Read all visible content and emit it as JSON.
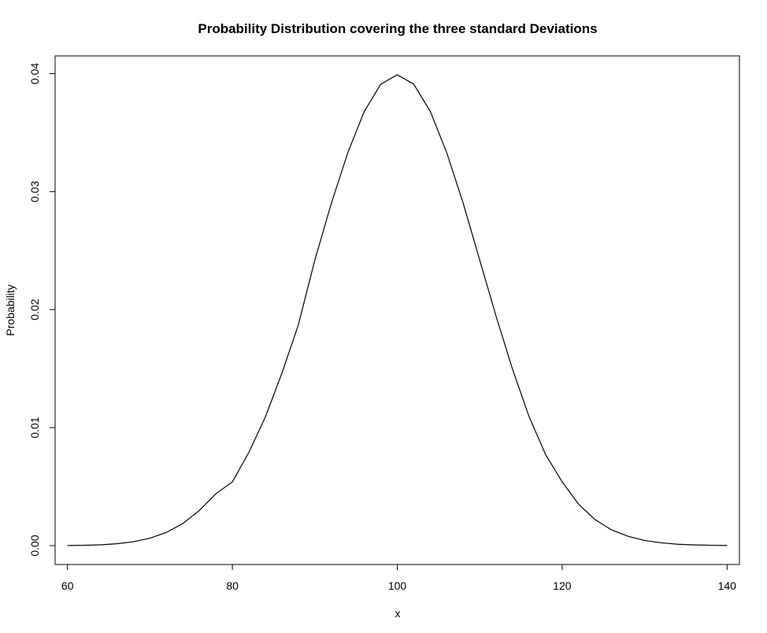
{
  "chart_data": {
    "type": "line",
    "title": "Probability Distribution covering the three standard Deviations",
    "xlabel": "x",
    "ylabel": "Probability",
    "xlim": [
      58.5,
      141.5
    ],
    "ylim": [
      -0.0016,
      0.0415
    ],
    "x_ticks": [
      60,
      80,
      100,
      120,
      140
    ],
    "x_tick_labels": [
      "60",
      "80",
      "100",
      "120",
      "140"
    ],
    "y_ticks": [
      0.0,
      0.01,
      0.02,
      0.03,
      0.04
    ],
    "y_tick_labels": [
      "0.00",
      "0.01",
      "0.02",
      "0.03",
      "0.04"
    ],
    "grid": false,
    "legend": "none",
    "line_color": "#000000",
    "series": [
      {
        "x": [
          60,
          62,
          64,
          66,
          68,
          70,
          72,
          74,
          76,
          78,
          80,
          82,
          84,
          86,
          88,
          90,
          92,
          94,
          96,
          98,
          100,
          102,
          104,
          106,
          108,
          110,
          112,
          114,
          116,
          118,
          120,
          122,
          124,
          126,
          128,
          130,
          132,
          134,
          136,
          138,
          140
        ],
        "values": [
          1e-05,
          3e-05,
          7e-05,
          0.00016,
          0.00033,
          0.00063,
          0.00112,
          0.00188,
          0.00298,
          0.0044,
          0.0054,
          0.0079,
          0.0109,
          0.0146,
          0.0187,
          0.0242,
          0.029,
          0.0333,
          0.0368,
          0.0391,
          0.0399,
          0.0391,
          0.0368,
          0.0333,
          0.029,
          0.0242,
          0.0194,
          0.0149,
          0.0109,
          0.0077,
          0.0054,
          0.0035,
          0.0022,
          0.00133,
          0.00079,
          0.00044,
          0.00024,
          0.00012,
          6e-05,
          3e-05,
          1e-05
        ]
      }
    ]
  }
}
